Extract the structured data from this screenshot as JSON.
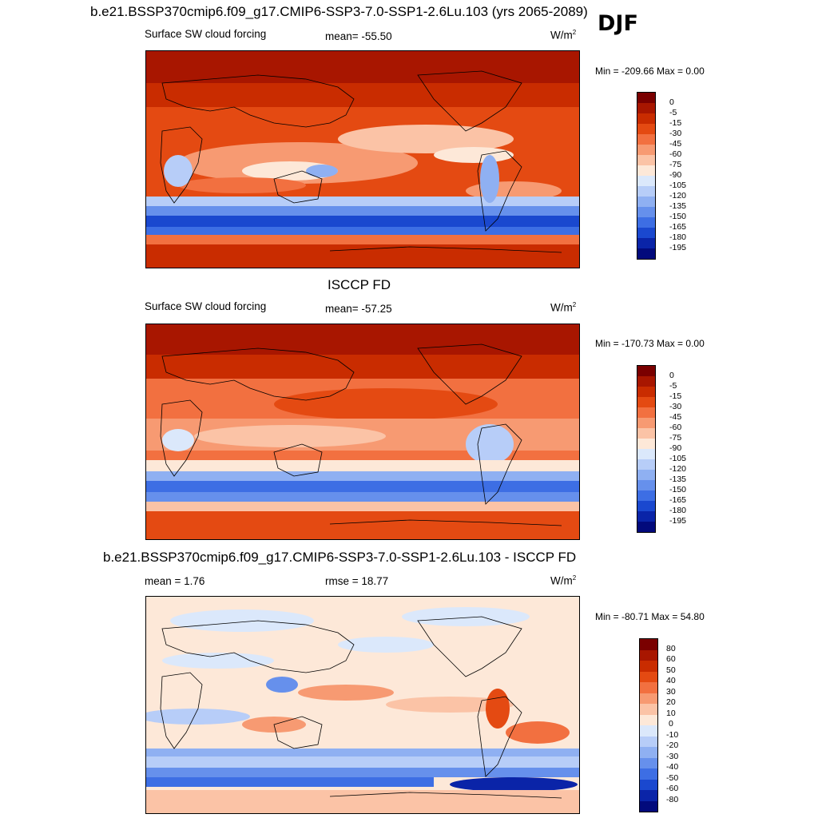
{
  "season": "DJF",
  "units_base": "W/m",
  "units_exp": "2",
  "panels": [
    {
      "title": "b.e21.BSSP370cmip6.f09_g17.CMIP6-SSP3-7.0-SSP1-2.6Lu.103 (yrs 2065-2089)",
      "variable": "Surface SW cloud forcing",
      "stat": "mean= -55.50",
      "minmax": "Min = -209.66 Max =   0.00",
      "colorbar_labels": [
        "0",
        "-5",
        "-15",
        "-30",
        "-45",
        "-60",
        "-75",
        "-90",
        "-105",
        "-120",
        "-135",
        "-150",
        "-165",
        "-180",
        "-195"
      ]
    },
    {
      "title": "ISCCP FD",
      "variable": "Surface SW cloud forcing",
      "stat": "mean= -57.25",
      "minmax": "Min = -170.73 Max =   0.00",
      "colorbar_labels": [
        "0",
        "-5",
        "-15",
        "-30",
        "-45",
        "-60",
        "-75",
        "-90",
        "-105",
        "-120",
        "-135",
        "-150",
        "-165",
        "-180",
        "-195"
      ]
    },
    {
      "title": "b.e21.BSSP370cmip6.f09_g17.CMIP6-SSP3-7.0-SSP1-2.6Lu.103 - ISCCP FD",
      "variable": "mean =   1.76",
      "stat": "rmse =  18.77",
      "minmax": "Min = -80.71 Max =  54.80",
      "colorbar_labels": [
        "80",
        "60",
        "50",
        "40",
        "30",
        "20",
        "10",
        "0",
        "-10",
        "-20",
        "-30",
        "-40",
        "-50",
        "-60",
        "-80"
      ]
    }
  ],
  "colors": {
    "forcing": [
      "#7a0000",
      "#a81600",
      "#c92c00",
      "#e44a12",
      "#f27040",
      "#f79a72",
      "#fbc3a6",
      "#fde8d8",
      "#dbe8fb",
      "#b7cdf8",
      "#8fb0f2",
      "#6690ec",
      "#3d6ee4",
      "#1a48cf",
      "#0a24a8",
      "#020a7c"
    ],
    "diff": [
      "#7a0000",
      "#a81600",
      "#c92c00",
      "#e44a12",
      "#f27040",
      "#f79a72",
      "#fbc3a6",
      "#fde8d8",
      "#dbe8fb",
      "#b7cdf8",
      "#8fb0f2",
      "#6690ec",
      "#3d6ee4",
      "#1a48cf",
      "#0a24a8",
      "#020a7c"
    ]
  }
}
